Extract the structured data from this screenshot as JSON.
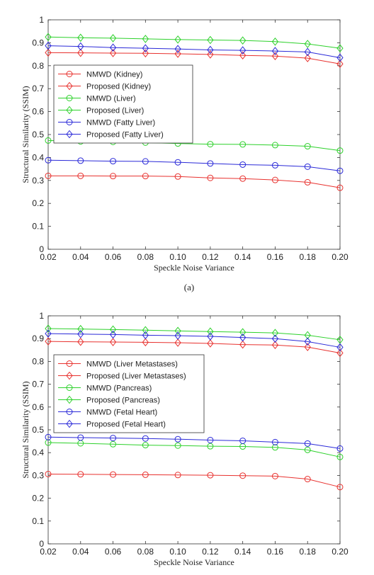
{
  "figure": {
    "caption_a": "(a)"
  },
  "colors": {
    "red": "#e8322f",
    "green": "#2dd12b",
    "blue": "#2b2ad8"
  },
  "chart_data": [
    {
      "id": "a",
      "type": "line",
      "xlabel": "Speckle Noise Variance",
      "ylabel": "Structural Similarity (SSIM)",
      "xlim": [
        0.02,
        0.2
      ],
      "ylim": [
        0,
        1
      ],
      "x": [
        0.02,
        0.04,
        0.06,
        0.08,
        0.1,
        0.12,
        0.14,
        0.16,
        0.18,
        0.2
      ],
      "x_ticks": [
        "0.02",
        "0.04",
        "0.06",
        "0.08",
        "0.10",
        "0.12",
        "0.14",
        "0.16",
        "0.18",
        "0.20"
      ],
      "y_ticks": [
        "0",
        "0.1",
        "0.2",
        "0.3",
        "0.4",
        "0.5",
        "0.6",
        "0.7",
        "0.8",
        "0.9",
        "1"
      ],
      "legend_position": "left-middle",
      "series": [
        {
          "name": "NMWD (Kidney)",
          "color": "red",
          "marker": "circle",
          "values": [
            0.32,
            0.32,
            0.319,
            0.319,
            0.317,
            0.311,
            0.308,
            0.302,
            0.292,
            0.268
          ]
        },
        {
          "name": "Proposed (Kidney)",
          "color": "red",
          "marker": "diamond",
          "values": [
            0.857,
            0.856,
            0.855,
            0.854,
            0.852,
            0.849,
            0.845,
            0.842,
            0.833,
            0.808
          ]
        },
        {
          "name": "NMWD (Liver)",
          "color": "green",
          "marker": "circle",
          "values": [
            0.474,
            0.47,
            0.468,
            0.465,
            0.461,
            0.458,
            0.457,
            0.454,
            0.449,
            0.43
          ]
        },
        {
          "name": "Proposed (Liver)",
          "color": "green",
          "marker": "diamond",
          "values": [
            0.925,
            0.922,
            0.92,
            0.917,
            0.914,
            0.912,
            0.91,
            0.905,
            0.895,
            0.876
          ]
        },
        {
          "name": "NMWD (Fatty Liver)",
          "color": "blue",
          "marker": "circle",
          "values": [
            0.388,
            0.386,
            0.384,
            0.383,
            0.379,
            0.374,
            0.369,
            0.366,
            0.36,
            0.342
          ]
        },
        {
          "name": "Proposed (Fatty Liver)",
          "color": "blue",
          "marker": "diamond",
          "values": [
            0.887,
            0.884,
            0.879,
            0.876,
            0.873,
            0.869,
            0.867,
            0.864,
            0.86,
            0.835
          ]
        }
      ]
    },
    {
      "id": "b",
      "type": "line",
      "xlabel": "Speckle Noise Variance",
      "ylabel": "Structural Similarity (SSIM)",
      "xlim": [
        0.02,
        0.2
      ],
      "ylim": [
        0,
        1
      ],
      "x": [
        0.02,
        0.04,
        0.06,
        0.08,
        0.1,
        0.12,
        0.14,
        0.16,
        0.18,
        0.2
      ],
      "x_ticks": [
        "0.02",
        "0.04",
        "0.06",
        "0.08",
        "0.10",
        "0.12",
        "0.14",
        "0.16",
        "0.18",
        "0.20"
      ],
      "y_ticks": [
        "0",
        "0.1",
        "0.2",
        "0.3",
        "0.4",
        "0.5",
        "0.6",
        "0.7",
        "0.8",
        "0.9",
        "1"
      ],
      "legend_position": "left-middle",
      "series": [
        {
          "name": "NMWD (Liver Metastases)",
          "color": "red",
          "marker": "circle",
          "values": [
            0.306,
            0.305,
            0.304,
            0.303,
            0.302,
            0.301,
            0.299,
            0.297,
            0.284,
            0.249
          ]
        },
        {
          "name": "Proposed (Liver Metastases)",
          "color": "red",
          "marker": "diamond",
          "values": [
            0.888,
            0.886,
            0.885,
            0.884,
            0.882,
            0.879,
            0.874,
            0.872,
            0.863,
            0.837
          ]
        },
        {
          "name": "NMWD (Pancreas)",
          "color": "green",
          "marker": "circle",
          "values": [
            0.444,
            0.441,
            0.437,
            0.433,
            0.431,
            0.428,
            0.427,
            0.423,
            0.412,
            0.381
          ]
        },
        {
          "name": "Proposed (Pancreas)",
          "color": "green",
          "marker": "diamond",
          "values": [
            0.944,
            0.942,
            0.94,
            0.937,
            0.934,
            0.931,
            0.928,
            0.925,
            0.915,
            0.895
          ]
        },
        {
          "name": "NMWD (Fetal Heart)",
          "color": "blue",
          "marker": "circle",
          "values": [
            0.468,
            0.466,
            0.464,
            0.462,
            0.459,
            0.455,
            0.452,
            0.446,
            0.44,
            0.418
          ]
        },
        {
          "name": "Proposed (Fetal Heart)",
          "color": "blue",
          "marker": "diamond",
          "values": [
            0.922,
            0.92,
            0.918,
            0.915,
            0.913,
            0.91,
            0.905,
            0.9,
            0.887,
            0.862
          ]
        }
      ]
    }
  ]
}
